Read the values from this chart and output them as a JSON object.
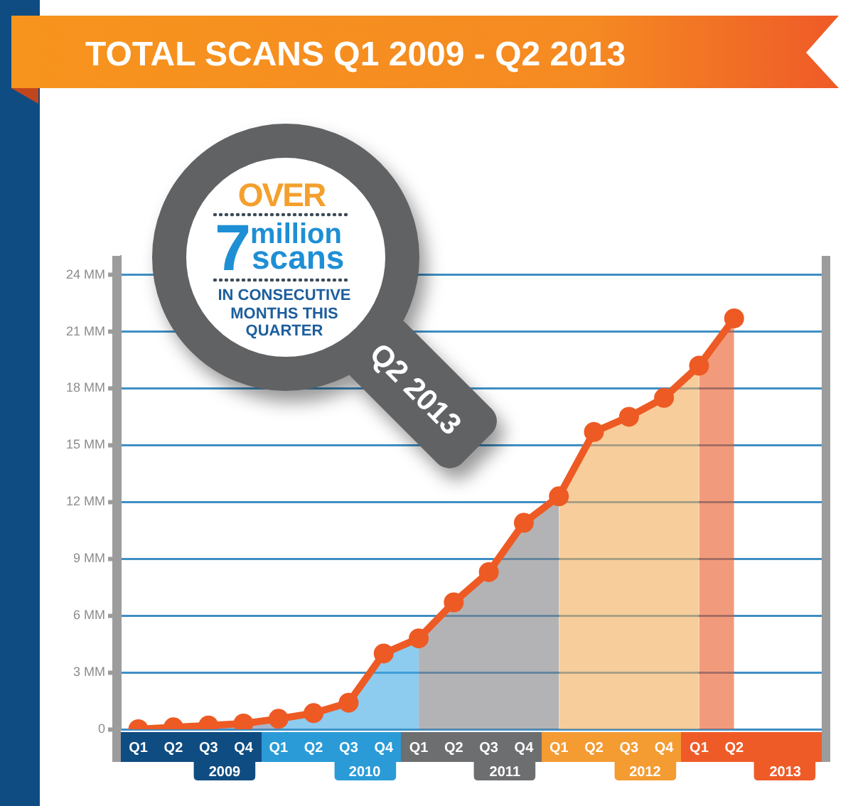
{
  "chart_data": {
    "type": "line",
    "title": "TOTAL SCANS Q1 2009 - Q2 2013",
    "categories": [
      "Q1",
      "Q2",
      "Q3",
      "Q4",
      "Q1",
      "Q2",
      "Q3",
      "Q4",
      "Q1",
      "Q2",
      "Q3",
      "Q4",
      "Q1",
      "Q2",
      "Q3",
      "Q4",
      "Q1",
      "Q2",
      null,
      null
    ],
    "series": [
      {
        "color": "#ee5a24",
        "marker": "circle",
        "values": [
          0,
          0.1,
          0.2,
          0.3,
          0.55,
          0.85,
          1.4,
          4.0,
          4.8,
          6.7,
          8.3,
          10.9,
          12.3,
          15.7,
          16.5,
          17.5,
          19.2,
          21.7,
          null,
          null
        ]
      },
      {
        "type": "area",
        "color": "#a6b6ca",
        "values": [
          0,
          0.1,
          0.2,
          0.3,
          0.55,
          null,
          null,
          null,
          null,
          null,
          null,
          null,
          null,
          null,
          null,
          null,
          null,
          null,
          null,
          null
        ]
      },
      {
        "type": "area",
        "color": "#8dcbef",
        "values": [
          null,
          null,
          null,
          null,
          0.55,
          0.85,
          1.4,
          4.0,
          4.8,
          null,
          null,
          null,
          null,
          null,
          null,
          null,
          null,
          null,
          null,
          null
        ]
      },
      {
        "type": "area",
        "color": "#b3b3b5",
        "values": [
          null,
          null,
          null,
          null,
          null,
          null,
          null,
          null,
          4.8,
          6.7,
          8.3,
          10.9,
          12.3,
          null,
          null,
          null,
          null,
          null,
          null,
          null
        ]
      },
      {
        "type": "area",
        "color": "#f7cd9c",
        "values": [
          null,
          null,
          null,
          null,
          null,
          null,
          null,
          null,
          null,
          null,
          null,
          null,
          12.3,
          15.7,
          16.5,
          17.5,
          19.2,
          null,
          null,
          null
        ]
      },
      {
        "type": "area",
        "color": "#f29b7c",
        "values": [
          null,
          null,
          null,
          null,
          null,
          null,
          null,
          null,
          null,
          null,
          null,
          null,
          null,
          null,
          null,
          null,
          19.2,
          21.7,
          null,
          null
        ]
      }
    ],
    "ylim": [
      0,
      25
    ],
    "yticks": [
      0,
      {
        "value": 3,
        "label": "3 MM"
      },
      {
        "value": 6,
        "label": "6 MM"
      },
      {
        "value": 9,
        "label": "9 MM"
      },
      {
        "value": 12,
        "label": "12 MM"
      },
      {
        "value": 15,
        "label": "15 MM"
      },
      {
        "value": 18,
        "label": "18 MM"
      },
      {
        "value": 21,
        "label": "21 MM"
      },
      {
        "value": 24,
        "label": "24 MM"
      }
    ],
    "grid": "y",
    "line_style": "solid",
    "annotations": [
      "OVER",
      "7",
      "million",
      "scans",
      "IN CONSECUTIVE MONTHS THIS QUARTER",
      "Q2 2013",
      "2009",
      "2010",
      "2011",
      "2012",
      "2013"
    ]
  }
}
